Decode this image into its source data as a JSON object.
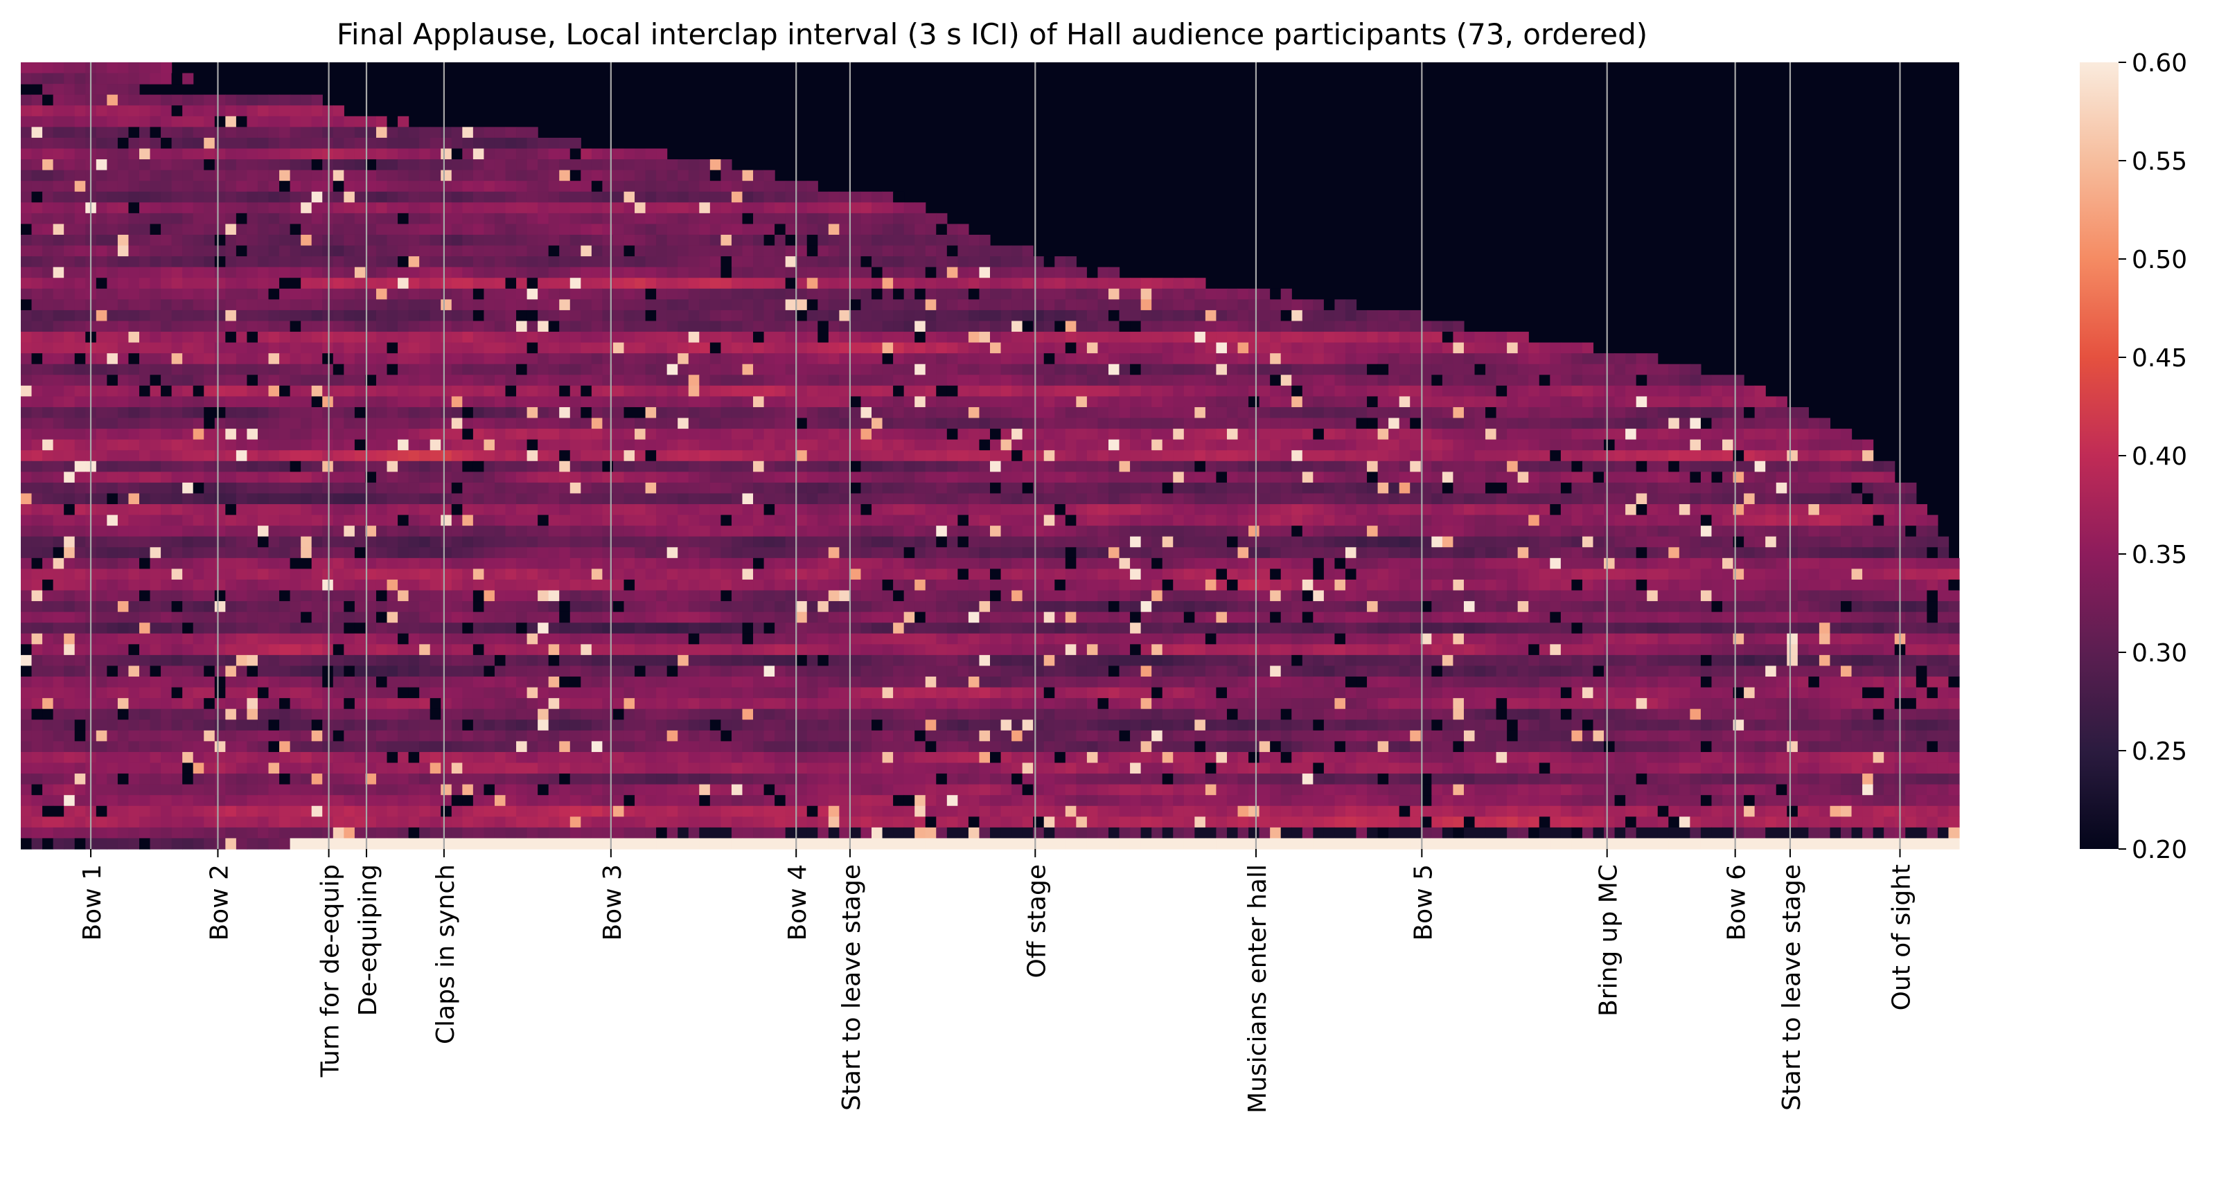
{
  "chart_data": {
    "type": "heatmap",
    "title": "Final Applause, Local interclap interval (3 s ICI) of Hall audience participants (73, ordered)",
    "xlabel": "",
    "ylabel": "",
    "n_rows": 73,
    "n_cols": 180,
    "colorbar": {
      "min": 0.2,
      "max": 0.6,
      "ticks": [
        "0.20",
        "0.25",
        "0.30",
        "0.35",
        "0.40",
        "0.45",
        "0.50",
        "0.55",
        "0.60"
      ],
      "colors": [
        "#03051a",
        "#2b1b3f",
        "#5b1e51",
        "#8d1c5c",
        "#c02b56",
        "#e5513f",
        "#f58b63",
        "#f6bd9d",
        "#faebdd"
      ]
    },
    "no_data_color": "#03051a",
    "grid": false,
    "event_lines_color": "#a8a8a8",
    "events": [
      {
        "label": "Bow 1",
        "col": 6.5
      },
      {
        "label": "Bow 2",
        "col": 18.3
      },
      {
        "label": "Turn for de-equip",
        "col": 28.6
      },
      {
        "label": "De-equiping",
        "col": 32.1
      },
      {
        "label": "Claps in synch",
        "col": 39.3
      },
      {
        "label": "Bow 3",
        "col": 54.8
      },
      {
        "label": "Bow 4",
        "col": 72.0
      },
      {
        "label": "Start to leave stage",
        "col": 77.0
      },
      {
        "label": "Off stage",
        "col": 94.2
      },
      {
        "label": "Musicians enter hall",
        "col": 114.7
      },
      {
        "label": "Bow 5",
        "col": 130.1
      },
      {
        "label": "Bring up MC",
        "col": 147.3
      },
      {
        "label": "Bow 6",
        "col": 159.2
      },
      {
        "label": "Start to leave stage",
        "col": 164.3
      },
      {
        "label": "Out of sight",
        "col": 174.5
      }
    ],
    "participant_spans": [
      [
        0,
        14
      ],
      [
        0,
        16
      ],
      [
        2,
        11
      ],
      [
        0,
        28
      ],
      [
        0,
        30
      ],
      [
        0,
        36
      ],
      [
        0,
        48
      ],
      [
        0,
        52
      ],
      [
        0,
        60
      ],
      [
        0,
        66
      ],
      [
        0,
        70
      ],
      [
        0,
        74
      ],
      [
        0,
        82
      ],
      [
        0,
        84
      ],
      [
        0,
        86
      ],
      [
        0,
        88
      ],
      [
        0,
        90
      ],
      [
        0,
        94
      ],
      [
        0,
        98
      ],
      [
        0,
        102
      ],
      [
        0,
        110
      ],
      [
        0,
        118
      ],
      [
        0,
        124
      ],
      [
        0,
        130
      ],
      [
        0,
        134
      ],
      [
        0,
        140
      ],
      [
        0,
        146
      ],
      [
        0,
        152
      ],
      [
        0,
        156
      ],
      [
        0,
        160
      ],
      [
        0,
        162
      ],
      [
        0,
        164
      ],
      [
        0,
        166
      ],
      [
        0,
        168
      ],
      [
        0,
        170
      ],
      [
        0,
        172
      ],
      [
        0,
        172
      ],
      [
        0,
        174
      ],
      [
        0,
        174
      ],
      [
        0,
        176
      ],
      [
        0,
        176
      ],
      [
        0,
        177
      ],
      [
        0,
        178
      ],
      [
        0,
        178
      ],
      [
        0,
        179
      ],
      [
        0,
        179
      ],
      [
        0,
        180
      ],
      [
        0,
        180
      ],
      [
        0,
        180
      ],
      [
        0,
        180
      ],
      [
        0,
        180
      ],
      [
        0,
        180
      ],
      [
        0,
        180
      ],
      [
        0,
        180
      ],
      [
        0,
        180
      ],
      [
        0,
        180
      ],
      [
        0,
        180
      ],
      [
        0,
        180
      ],
      [
        0,
        180
      ],
      [
        0,
        180
      ],
      [
        0,
        180
      ],
      [
        0,
        180
      ],
      [
        0,
        180
      ],
      [
        0,
        180
      ],
      [
        0,
        180
      ],
      [
        0,
        180
      ],
      [
        0,
        180
      ],
      [
        0,
        180
      ],
      [
        0,
        180
      ],
      [
        0,
        180
      ],
      [
        0,
        180
      ],
      [
        0,
        180
      ],
      [
        0,
        180
      ]
    ]
  }
}
